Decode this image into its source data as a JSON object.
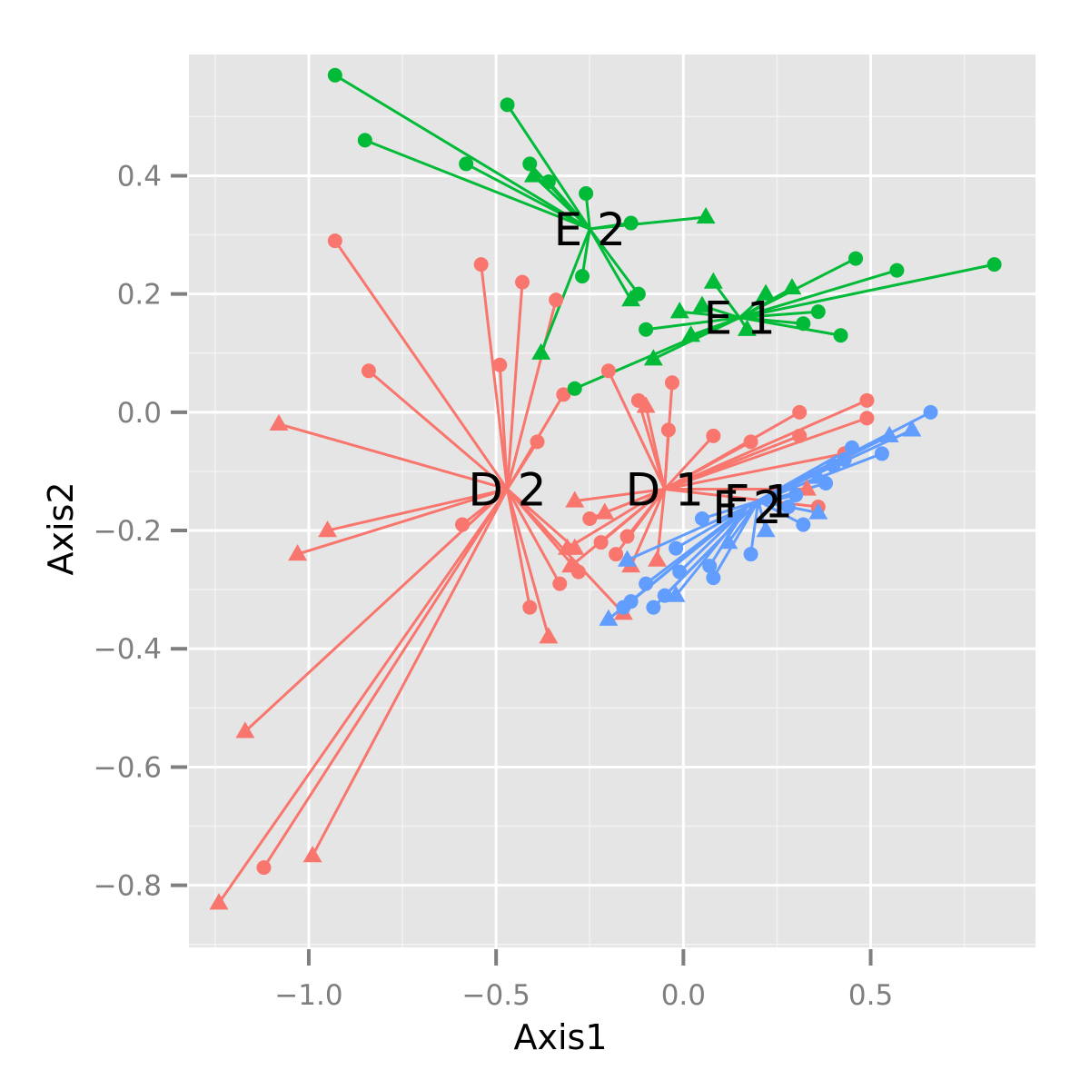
{
  "chart_data": {
    "type": "scatter",
    "xlabel": "Axis1",
    "ylabel": "Axis2",
    "xlim": [
      -1.32,
      0.94
    ],
    "ylim": [
      -0.905,
      0.605
    ],
    "x_ticks": [
      -1.0,
      -0.5,
      0.0,
      0.5
    ],
    "y_ticks": [
      -0.8,
      -0.6,
      -0.4,
      -0.2,
      0.0,
      0.2,
      0.4
    ],
    "x_tick_labels": [
      "−1.0",
      "−0.5",
      "0.0",
      "0.5"
    ],
    "y_tick_labels": [
      "−0.8",
      "−0.6",
      "−0.4",
      "−0.2",
      "0.0",
      "0.2",
      "0.4"
    ],
    "grid": true,
    "legend": "none",
    "marker_shapes": {
      "1": "circle",
      "2": "triangle"
    },
    "series": [
      {
        "color": "#F8766D",
        "centroids": [
          {
            "label": "D 1",
            "x": -0.05,
            "y": -0.13
          },
          {
            "label": "D 2",
            "x": -0.47,
            "y": -0.13
          }
        ],
        "points": [
          {
            "x": -0.93,
            "y": 0.29,
            "g": "2"
          },
          {
            "x": -0.84,
            "y": 0.07,
            "g": "2"
          },
          {
            "x": -0.54,
            "y": 0.25,
            "g": "2"
          },
          {
            "x": -0.49,
            "y": 0.08,
            "g": "2"
          },
          {
            "x": -0.43,
            "y": 0.22,
            "g": "2"
          },
          {
            "x": -0.34,
            "y": 0.19,
            "g": "2"
          },
          {
            "x": -0.32,
            "y": 0.03,
            "g": "2"
          },
          {
            "x": -0.39,
            "y": -0.05,
            "g": "2"
          },
          {
            "x": -0.59,
            "y": -0.19,
            "g": "2"
          },
          {
            "x": -0.41,
            "y": -0.33,
            "g": "2"
          },
          {
            "x": -1.12,
            "y": -0.77,
            "g": "2"
          },
          {
            "x": -0.33,
            "y": -0.29,
            "g": "2"
          },
          {
            "x": -0.28,
            "y": -0.27,
            "g": "2"
          },
          {
            "x": -1.08,
            "y": -0.02,
            "g": "2s"
          },
          {
            "x": -0.95,
            "y": -0.2,
            "g": "2s"
          },
          {
            "x": -1.03,
            "y": -0.24,
            "g": "2s"
          },
          {
            "x": -1.17,
            "y": -0.54,
            "g": "2s"
          },
          {
            "x": -1.24,
            "y": -0.83,
            "g": "2s"
          },
          {
            "x": -0.99,
            "y": -0.75,
            "g": "2s"
          },
          {
            "x": -0.36,
            "y": -0.38,
            "g": "2s"
          },
          {
            "x": -0.16,
            "y": -0.34,
            "g": "2s"
          },
          {
            "x": -0.29,
            "y": -0.23,
            "g": "2s"
          },
          {
            "x": -0.2,
            "y": 0.07,
            "g": "1"
          },
          {
            "x": -0.03,
            "y": 0.05,
            "g": "1"
          },
          {
            "x": -0.12,
            "y": 0.02,
            "g": "1"
          },
          {
            "x": -0.04,
            "y": -0.03,
            "g": "1"
          },
          {
            "x": 0.08,
            "y": -0.04,
            "g": "1"
          },
          {
            "x": 0.18,
            "y": -0.05,
            "g": "1"
          },
          {
            "x": 0.31,
            "y": -0.04,
            "g": "1"
          },
          {
            "x": 0.31,
            "y": 0.0,
            "g": "1"
          },
          {
            "x": 0.43,
            "y": -0.07,
            "g": "1"
          },
          {
            "x": 0.49,
            "y": 0.02,
            "g": "1"
          },
          {
            "x": 0.49,
            "y": -0.01,
            "g": "1"
          },
          {
            "x": 0.36,
            "y": -0.16,
            "g": "1"
          },
          {
            "x": -0.15,
            "y": -0.21,
            "g": "1"
          },
          {
            "x": -0.18,
            "y": -0.24,
            "g": "1"
          },
          {
            "x": -0.22,
            "y": -0.22,
            "g": "1"
          },
          {
            "x": -0.25,
            "y": -0.18,
            "g": "1"
          },
          {
            "x": -0.1,
            "y": 0.01,
            "g": "1s"
          },
          {
            "x": -0.29,
            "y": -0.15,
            "g": "1s"
          },
          {
            "x": -0.21,
            "y": -0.17,
            "g": "1s"
          },
          {
            "x": -0.07,
            "y": -0.25,
            "g": "1s"
          },
          {
            "x": -0.14,
            "y": -0.26,
            "g": "1s"
          },
          {
            "x": -0.31,
            "y": -0.23,
            "g": "1s"
          },
          {
            "x": -0.3,
            "y": -0.26,
            "g": "1s"
          },
          {
            "x": 0.33,
            "y": -0.13,
            "g": "1s"
          }
        ]
      },
      {
        "color": "#00BA38",
        "centroids": [
          {
            "label": "E 1",
            "x": 0.15,
            "y": 0.16
          },
          {
            "label": "E 2",
            "x": -0.25,
            "y": 0.31
          }
        ],
        "points": [
          {
            "x": -0.93,
            "y": 0.57,
            "g": "2"
          },
          {
            "x": -0.85,
            "y": 0.46,
            "g": "2"
          },
          {
            "x": -0.47,
            "y": 0.52,
            "g": "2"
          },
          {
            "x": -0.58,
            "y": 0.42,
            "g": "2"
          },
          {
            "x": -0.41,
            "y": 0.42,
            "g": "2"
          },
          {
            "x": -0.36,
            "y": 0.39,
            "g": "2"
          },
          {
            "x": -0.26,
            "y": 0.37,
            "g": "2"
          },
          {
            "x": -0.27,
            "y": 0.23,
            "g": "2"
          },
          {
            "x": -0.14,
            "y": 0.32,
            "g": "2"
          },
          {
            "x": -0.12,
            "y": 0.2,
            "g": "2"
          },
          {
            "x": -0.4,
            "y": 0.4,
            "g": "2s"
          },
          {
            "x": -0.38,
            "y": 0.1,
            "g": "2s"
          },
          {
            "x": 0.06,
            "y": 0.33,
            "g": "2s"
          },
          {
            "x": -0.14,
            "y": 0.19,
            "g": "2s"
          },
          {
            "x": -0.1,
            "y": 0.14,
            "g": "1"
          },
          {
            "x": -0.29,
            "y": 0.04,
            "g": "1"
          },
          {
            "x": 0.46,
            "y": 0.26,
            "g": "1"
          },
          {
            "x": 0.57,
            "y": 0.24,
            "g": "1"
          },
          {
            "x": 0.83,
            "y": 0.25,
            "g": "1"
          },
          {
            "x": 0.42,
            "y": 0.13,
            "g": "1"
          },
          {
            "x": 0.36,
            "y": 0.17,
            "g": "1"
          },
          {
            "x": 0.32,
            "y": 0.15,
            "g": "1"
          },
          {
            "x": 0.08,
            "y": 0.22,
            "g": "1s"
          },
          {
            "x": 0.22,
            "y": 0.2,
            "g": "1s"
          },
          {
            "x": 0.29,
            "y": 0.21,
            "g": "1s"
          },
          {
            "x": -0.01,
            "y": 0.17,
            "g": "1s"
          },
          {
            "x": 0.05,
            "y": 0.18,
            "g": "1s"
          },
          {
            "x": 0.17,
            "y": 0.14,
            "g": "1s"
          },
          {
            "x": -0.08,
            "y": 0.09,
            "g": "1s"
          },
          {
            "x": 0.02,
            "y": 0.13,
            "g": "1s"
          }
        ]
      },
      {
        "color": "#619CFF",
        "centroids": [
          {
            "label": "F 1",
            "x": 0.2,
            "y": -0.15
          },
          {
            "label": "F 2",
            "x": 0.17,
            "y": -0.16
          }
        ],
        "points": [
          {
            "x": 0.66,
            "y": 0.0,
            "g": "1"
          },
          {
            "x": 0.53,
            "y": -0.07,
            "g": "1"
          },
          {
            "x": 0.43,
            "y": -0.08,
            "g": "1"
          },
          {
            "x": 0.4,
            "y": -0.09,
            "g": "1"
          },
          {
            "x": 0.32,
            "y": -0.19,
            "g": "1"
          },
          {
            "x": 0.28,
            "y": -0.16,
            "g": "1"
          },
          {
            "x": 0.18,
            "y": -0.24,
            "g": "1"
          },
          {
            "x": 0.08,
            "y": -0.28,
            "g": "1"
          },
          {
            "x": 0.05,
            "y": -0.18,
            "g": "1"
          },
          {
            "x": -0.05,
            "y": -0.31,
            "g": "1"
          },
          {
            "x": -0.08,
            "y": -0.33,
            "g": "1"
          },
          {
            "x": 0.61,
            "y": -0.03,
            "g": "1s"
          },
          {
            "x": 0.55,
            "y": -0.04,
            "g": "1s"
          },
          {
            "x": 0.36,
            "y": -0.17,
            "g": "1s"
          },
          {
            "x": 0.22,
            "y": -0.2,
            "g": "1s"
          },
          {
            "x": 0.12,
            "y": -0.22,
            "g": "1s"
          },
          {
            "x": -0.01,
            "y": -0.27,
            "g": "2"
          },
          {
            "x": -0.1,
            "y": -0.29,
            "g": "2"
          },
          {
            "x": -0.16,
            "y": -0.33,
            "g": "2"
          },
          {
            "x": -0.14,
            "y": -0.32,
            "g": "2"
          },
          {
            "x": -0.02,
            "y": -0.23,
            "g": "2"
          },
          {
            "x": 0.07,
            "y": -0.26,
            "g": "2"
          },
          {
            "x": 0.3,
            "y": -0.14,
            "g": "2"
          },
          {
            "x": 0.38,
            "y": -0.12,
            "g": "2"
          },
          {
            "x": 0.45,
            "y": -0.06,
            "g": "2"
          },
          {
            "x": -0.15,
            "y": -0.25,
            "g": "2s"
          },
          {
            "x": -0.2,
            "y": -0.35,
            "g": "2s"
          },
          {
            "x": -0.02,
            "y": -0.31,
            "g": "2s"
          },
          {
            "x": 0.36,
            "y": -0.11,
            "g": "2s"
          }
        ]
      }
    ]
  }
}
